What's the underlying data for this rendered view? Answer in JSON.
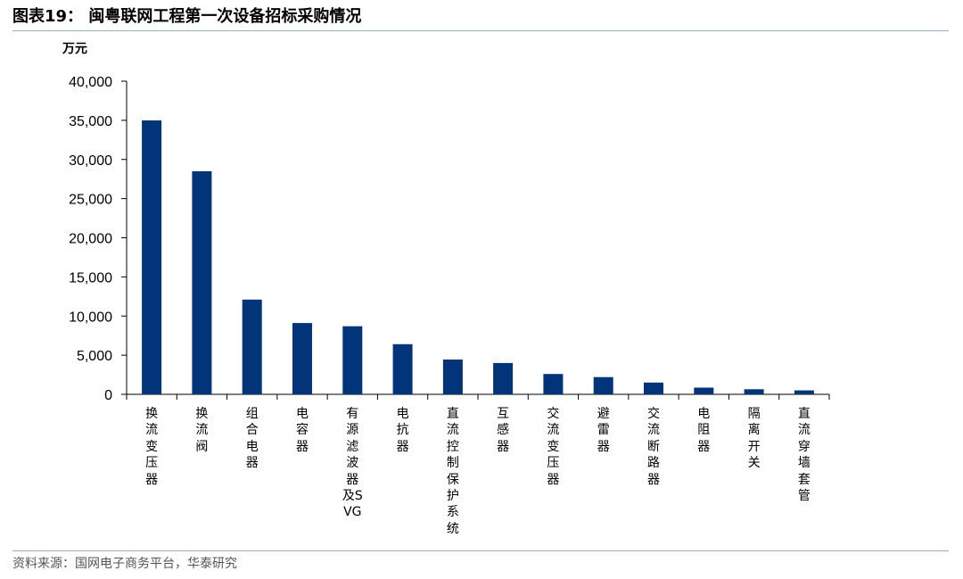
{
  "header": {
    "title": "图表19： 闽粤联网工程第一次设备招标采购情况"
  },
  "source": "资料来源：国网电子商务平台，华泰研究",
  "colors": {
    "bar": "#013479",
    "rule": "#9aaec9",
    "axis": "#000000"
  },
  "chart_data": {
    "type": "bar",
    "ylabel": "万元",
    "ylim": [
      0,
      40000
    ],
    "yticks": [
      0,
      5000,
      10000,
      15000,
      20000,
      25000,
      30000,
      35000,
      40000
    ],
    "ytick_labels": [
      "0",
      "5,000",
      "10,000",
      "15,000",
      "20,000",
      "25,000",
      "30,000",
      "35,000",
      "40,000"
    ],
    "categories": [
      "换流变压器",
      "换流阀",
      "组合电器",
      "电容器",
      "有源滤波器及SVG",
      "电抗器",
      "直流控制保护系统",
      "互感器",
      "交流变压器",
      "避雷器",
      "交流断路器",
      "电阻器",
      "隔离开关",
      "直流穿墙套管"
    ],
    "values": [
      35000,
      28500,
      12100,
      9100,
      8700,
      6400,
      4450,
      4000,
      2600,
      2200,
      1500,
      850,
      650,
      500
    ],
    "grid": false,
    "legend": "none"
  }
}
